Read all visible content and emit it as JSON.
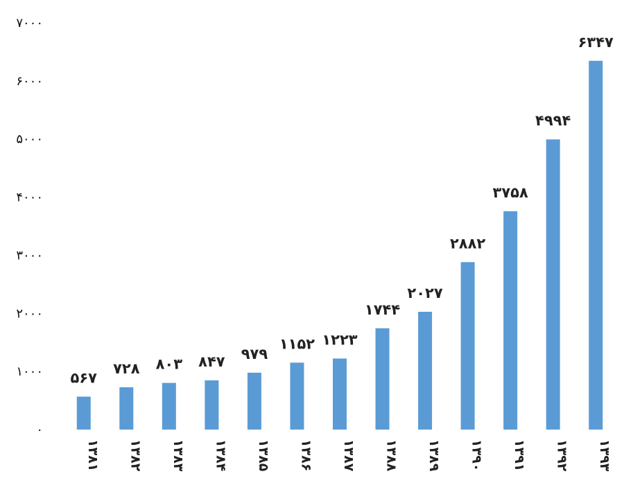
{
  "chart_data": {
    "type": "bar",
    "categories": [
      "۱۳۸۱",
      "۱۳۸۲",
      "۱۳۸۳",
      "۱۳۸۴",
      "۱۳۸۵",
      "۱۳۸۶",
      "۱۳۸۷",
      "۱۳۸۸",
      "۱۳۸۹",
      "۱۳۹۰",
      "۱۳۹۱",
      "۱۳۹۲",
      "۱۳۹۳"
    ],
    "values": [
      567,
      728,
      803,
      847,
      979,
      1152,
      1223,
      1744,
      2027,
      2882,
      3758,
      4994,
      6347
    ],
    "value_labels": [
      "۵۶۷",
      "۷۲۸",
      "۸۰۳",
      "۸۴۷",
      "۹۷۹",
      "۱۱۵۲",
      "۱۲۲۳",
      "۱۷۴۴",
      "۲۰۲۷",
      "۲۸۸۲",
      "۳۷۵۸",
      "۴۹۹۴",
      "۶۳۴۷"
    ],
    "ylim": [
      0,
      7000
    ],
    "y_ticks": [
      0,
      1000,
      2000,
      3000,
      4000,
      5000,
      6000,
      7000
    ],
    "y_tick_labels": [
      "۰",
      "۱۰۰۰",
      "۲۰۰۰",
      "۳۰۰۰",
      "۴۰۰۰",
      "۵۰۰۰",
      "۶۰۰۰",
      "۷۰۰۰"
    ],
    "grid": false,
    "bar_color": "#5b9bd5",
    "title": "",
    "xlabel": "",
    "ylabel": ""
  }
}
